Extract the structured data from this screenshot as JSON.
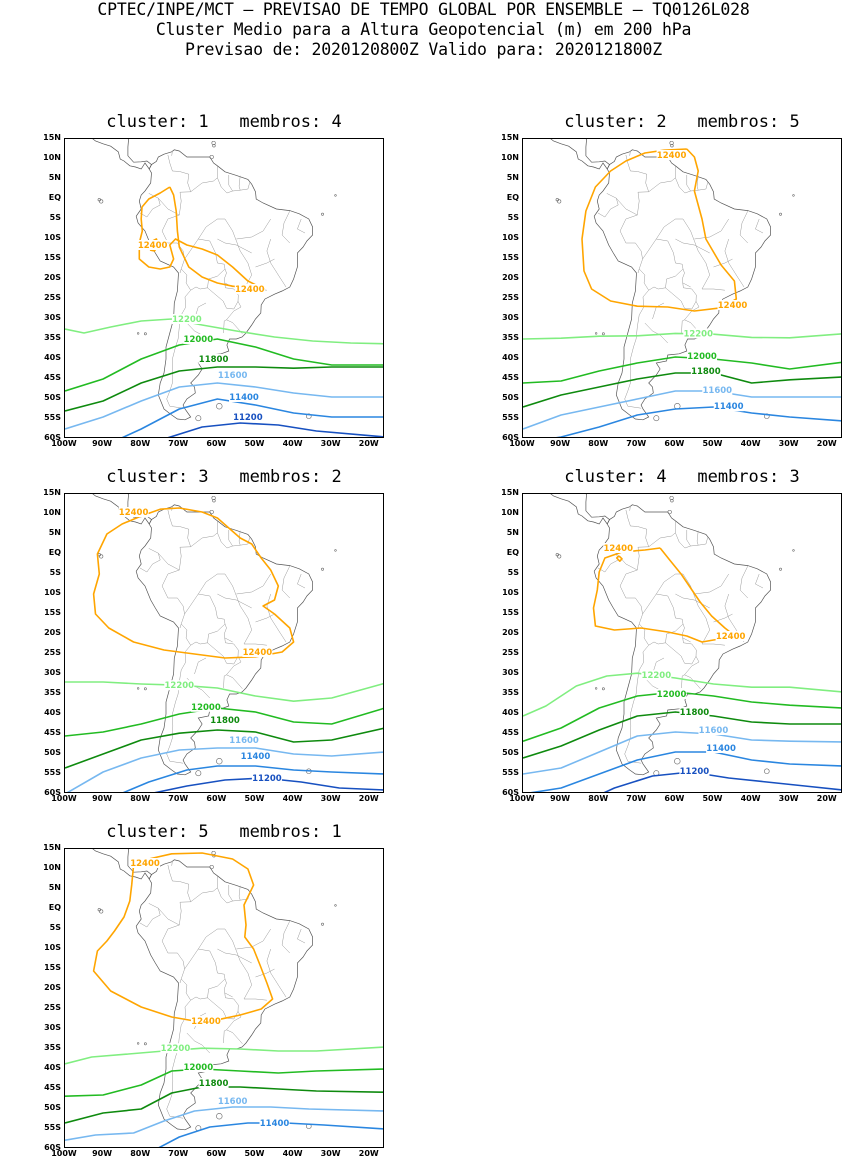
{
  "header": {
    "line1": "CPTEC/INPE/MCT – PREVISAO DE TEMPO GLOBAL POR ENSEMBLE – TQ0126L028",
    "line2": "Cluster Medio para a Altura Geopotencial (m) em 200 hPa",
    "line3": "Previsao de: 2020120800Z   Valido para: 2020121800Z"
  },
  "axes": {
    "lat_labels": [
      "15N",
      "10N",
      "5N",
      "EQ",
      "5S",
      "10S",
      "15S",
      "20S",
      "25S",
      "30S",
      "35S",
      "40S",
      "45S",
      "50S",
      "55S",
      "60S"
    ],
    "lon_labels": [
      "100W",
      "90W",
      "80W",
      "70W",
      "60W",
      "50W",
      "40W",
      "30W",
      "20W"
    ]
  },
  "contour_colors": {
    "12400": "#ffa500",
    "12200": "#80ee80",
    "12000": "#22bb22",
    "11800": "#0e8a0e",
    "11600": "#77b8f0",
    "11400": "#2a86e0",
    "11200": "#1750c0"
  },
  "panels": [
    {
      "title": "cluster: 1   membros: 4",
      "labels": {
        "12400a": "12400",
        "12400b": "12400",
        "12200": "12200",
        "12000": "12000",
        "11800": "11800",
        "11600": "11600",
        "11400": "11400",
        "11200": "11200"
      }
    },
    {
      "title": "cluster: 2   membros: 5",
      "labels": {
        "12400a": "12400",
        "12400b": "12400",
        "12200": "12200",
        "12000": "12000",
        "11800": "11800",
        "11600": "11600",
        "11400": "11400"
      }
    },
    {
      "title": "cluster: 3   membros: 2",
      "labels": {
        "12400a": "12400",
        "12400b": "12400",
        "12200": "12200",
        "12000": "12000",
        "11800": "11800",
        "11600": "11600",
        "11400": "11400",
        "11200": "11200"
      }
    },
    {
      "title": "cluster: 4   membros: 3",
      "labels": {
        "12400a": "12400",
        "12400b": "12400",
        "12200": "12200",
        "12000": "12000",
        "11800": "11800",
        "11600": "11600",
        "11400": "11400",
        "11200": "11200"
      }
    },
    {
      "title": "cluster: 5   membros: 1",
      "labels": {
        "12400a": "12400",
        "12400b": "12400",
        "12200": "12200",
        "12000": "12000",
        "11800": "11800",
        "11600": "11600",
        "11400": "11400"
      }
    }
  ]
}
